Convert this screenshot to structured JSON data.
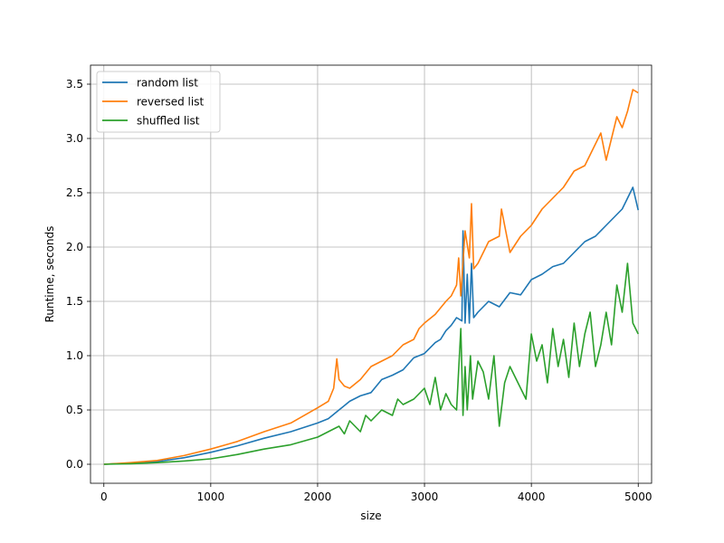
{
  "chart_data": {
    "type": "line",
    "title": "",
    "xlabel": "size",
    "ylabel": "Runtime, seconds",
    "xlim": [
      -125,
      5125
    ],
    "ylim": [
      -0.175,
      3.675
    ],
    "grid": true,
    "legend_position": "top-left",
    "xticks": [
      0,
      1000,
      2000,
      3000,
      4000,
      5000
    ],
    "xtick_labels": [
      "0",
      "1000",
      "2000",
      "3000",
      "4000",
      "5000"
    ],
    "yticks": [
      0.0,
      0.5,
      1.0,
      1.5,
      2.0,
      2.5,
      3.0,
      3.5
    ],
    "ytick_labels": [
      "0.0",
      "0.5",
      "1.0",
      "1.5",
      "2.0",
      "2.5",
      "3.0",
      "3.5"
    ],
    "series": [
      {
        "name": "random list",
        "color": "#1f77b4",
        "x": [
          0,
          250,
          500,
          750,
          1000,
          1250,
          1500,
          1750,
          2000,
          2100,
          2200,
          2300,
          2400,
          2500,
          2600,
          2700,
          2800,
          2900,
          3000,
          3100,
          3150,
          3200,
          3250,
          3300,
          3350,
          3360,
          3380,
          3400,
          3420,
          3440,
          3460,
          3500,
          3600,
          3700,
          3800,
          3900,
          4000,
          4100,
          4200,
          4300,
          4400,
          4500,
          4600,
          4700,
          4800,
          4850,
          4900,
          4950,
          5000
        ],
        "y": [
          0.0,
          0.01,
          0.025,
          0.06,
          0.11,
          0.17,
          0.24,
          0.3,
          0.38,
          0.42,
          0.5,
          0.58,
          0.63,
          0.66,
          0.78,
          0.82,
          0.87,
          0.98,
          1.02,
          1.12,
          1.15,
          1.23,
          1.28,
          1.35,
          1.32,
          2.15,
          1.3,
          1.75,
          1.3,
          1.85,
          1.35,
          1.4,
          1.5,
          1.45,
          1.58,
          1.56,
          1.7,
          1.75,
          1.82,
          1.85,
          1.95,
          2.05,
          2.1,
          2.2,
          2.3,
          2.35,
          2.45,
          2.55,
          2.34
        ]
      },
      {
        "name": "reversed list",
        "color": "#ff7f0e",
        "x": [
          0,
          250,
          500,
          750,
          1000,
          1250,
          1500,
          1750,
          2000,
          2100,
          2150,
          2180,
          2200,
          2250,
          2300,
          2400,
          2500,
          2600,
          2700,
          2800,
          2900,
          2950,
          3000,
          3100,
          3200,
          3250,
          3300,
          3320,
          3340,
          3380,
          3420,
          3440,
          3460,
          3500,
          3600,
          3700,
          3720,
          3750,
          3800,
          3900,
          4000,
          4100,
          4200,
          4300,
          4400,
          4500,
          4550,
          4600,
          4650,
          4700,
          4800,
          4850,
          4900,
          4950,
          5000
        ],
        "y": [
          0.0,
          0.015,
          0.035,
          0.08,
          0.14,
          0.21,
          0.3,
          0.38,
          0.52,
          0.58,
          0.7,
          0.97,
          0.78,
          0.72,
          0.7,
          0.78,
          0.9,
          0.95,
          1.0,
          1.1,
          1.15,
          1.25,
          1.3,
          1.38,
          1.5,
          1.55,
          1.65,
          1.9,
          1.55,
          2.15,
          1.9,
          2.4,
          1.8,
          1.85,
          2.05,
          2.1,
          2.35,
          2.2,
          1.95,
          2.1,
          2.2,
          2.35,
          2.45,
          2.55,
          2.7,
          2.75,
          2.85,
          2.95,
          3.05,
          2.8,
          3.2,
          3.1,
          3.25,
          3.45,
          3.42
        ]
      },
      {
        "name": "shuffled list",
        "color": "#2ca02c",
        "x": [
          0,
          250,
          500,
          750,
          1000,
          1250,
          1500,
          1750,
          2000,
          2100,
          2200,
          2250,
          2300,
          2400,
          2450,
          2500,
          2600,
          2700,
          2750,
          2800,
          2900,
          3000,
          3050,
          3100,
          3150,
          3200,
          3250,
          3300,
          3340,
          3360,
          3380,
          3400,
          3430,
          3450,
          3500,
          3550,
          3600,
          3650,
          3700,
          3750,
          3800,
          3850,
          3900,
          3950,
          4000,
          4050,
          4100,
          4150,
          4200,
          4250,
          4300,
          4350,
          4400,
          4450,
          4500,
          4550,
          4600,
          4650,
          4700,
          4750,
          4800,
          4850,
          4900,
          4950,
          5000
        ],
        "y": [
          0.0,
          0.005,
          0.015,
          0.03,
          0.05,
          0.09,
          0.14,
          0.18,
          0.25,
          0.3,
          0.35,
          0.28,
          0.4,
          0.3,
          0.45,
          0.4,
          0.5,
          0.45,
          0.6,
          0.55,
          0.6,
          0.7,
          0.55,
          0.8,
          0.5,
          0.65,
          0.55,
          0.5,
          1.25,
          0.45,
          0.9,
          0.5,
          1.0,
          0.6,
          0.95,
          0.85,
          0.6,
          1.0,
          0.35,
          0.75,
          0.9,
          0.8,
          0.7,
          0.6,
          1.2,
          0.95,
          1.1,
          0.75,
          1.25,
          0.9,
          1.15,
          0.8,
          1.3,
          0.9,
          1.2,
          1.4,
          0.9,
          1.1,
          1.4,
          1.1,
          1.65,
          1.4,
          1.85,
          1.3,
          1.2
        ]
      }
    ]
  }
}
